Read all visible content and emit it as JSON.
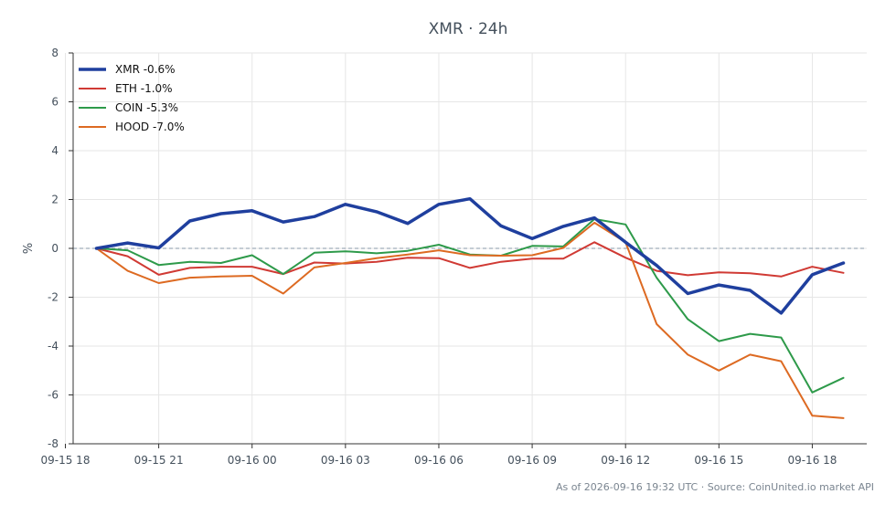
{
  "chart_data": {
    "type": "line",
    "title": "XMR · 24h",
    "xlabel": "",
    "ylabel": "%",
    "ylim": [
      -8,
      8
    ],
    "yticks": [
      -8,
      -6,
      -4,
      -2,
      0,
      2,
      4,
      6,
      8
    ],
    "xlim": [
      "2026-09-15 18:15",
      "2026-09-16 19:45"
    ],
    "xticks": [
      {
        "at": "2026-09-15 18:00",
        "label": "09-15 18"
      },
      {
        "at": "2026-09-15 21:00",
        "label": "09-15 21"
      },
      {
        "at": "2026-09-16 00:00",
        "label": "09-16 00"
      },
      {
        "at": "2026-09-16 03:00",
        "label": "09-16 03"
      },
      {
        "at": "2026-09-16 06:00",
        "label": "09-16 06"
      },
      {
        "at": "2026-09-16 09:00",
        "label": "09-16 09"
      },
      {
        "at": "2026-09-16 12:00",
        "label": "09-16 12"
      },
      {
        "at": "2026-09-16 15:00",
        "label": "09-16 15"
      },
      {
        "at": "2026-09-16 18:00",
        "label": "09-16 18"
      }
    ],
    "x": [
      "2026-09-15 19:00",
      "2026-09-15 20:00",
      "2026-09-15 21:00",
      "2026-09-15 22:00",
      "2026-09-15 23:00",
      "2026-09-16 00:00",
      "2026-09-16 01:00",
      "2026-09-16 02:00",
      "2026-09-16 03:00",
      "2026-09-16 04:00",
      "2026-09-16 05:00",
      "2026-09-16 06:00",
      "2026-09-16 07:00",
      "2026-09-16 08:00",
      "2026-09-16 09:00",
      "2026-09-16 10:00",
      "2026-09-16 11:00",
      "2026-09-16 12:00",
      "2026-09-16 13:00",
      "2026-09-16 14:00",
      "2026-09-16 15:00",
      "2026-09-16 16:00",
      "2026-09-16 17:00",
      "2026-09-16 18:00",
      "2026-09-16 19:00"
    ],
    "series": [
      {
        "name": "XMR -0.6%",
        "color": "#1f3f9e",
        "bold": true,
        "values": [
          0.0,
          0.22,
          0.02,
          1.12,
          1.42,
          1.54,
          1.08,
          1.3,
          1.8,
          1.5,
          1.02,
          1.8,
          2.03,
          0.92,
          0.4,
          0.9,
          1.25,
          0.25,
          -0.7,
          -1.85,
          -1.5,
          -1.72,
          -2.65,
          -1.08,
          -0.6
        ]
      },
      {
        "name": "ETH -1.0%",
        "color": "#d03a34",
        "bold": false,
        "values": [
          0.0,
          -0.32,
          -1.08,
          -0.8,
          -0.75,
          -0.75,
          -1.05,
          -0.58,
          -0.62,
          -0.55,
          -0.38,
          -0.4,
          -0.8,
          -0.55,
          -0.42,
          -0.42,
          0.25,
          -0.38,
          -0.92,
          -1.1,
          -0.98,
          -1.02,
          -1.15,
          -0.75,
          -1.0
        ]
      },
      {
        "name": "COIN -5.3%",
        "color": "#2e9a4a",
        "bold": false,
        "values": [
          0.0,
          -0.08,
          -0.68,
          -0.55,
          -0.6,
          -0.28,
          -1.05,
          -0.18,
          -0.12,
          -0.2,
          -0.1,
          0.15,
          -0.25,
          -0.3,
          0.1,
          0.08,
          1.2,
          0.98,
          -1.2,
          -2.9,
          -3.8,
          -3.5,
          -3.65,
          -5.9,
          -5.3
        ]
      },
      {
        "name": "HOOD -7.0%",
        "color": "#dd6a22",
        "bold": false,
        "values": [
          0.0,
          -0.92,
          -1.42,
          -1.2,
          -1.15,
          -1.12,
          -1.85,
          -0.78,
          -0.6,
          -0.4,
          -0.25,
          -0.08,
          -0.28,
          -0.3,
          -0.28,
          0.02,
          1.05,
          0.25,
          -3.1,
          -4.35,
          -5.0,
          -4.35,
          -4.62,
          -6.85,
          -6.95
        ]
      }
    ],
    "legend": "top-left",
    "grid": true,
    "zero_line": true
  },
  "footer": {
    "source": "As of 2026-09-16 19:32 UTC · Source: CoinUnited.io market API"
  }
}
